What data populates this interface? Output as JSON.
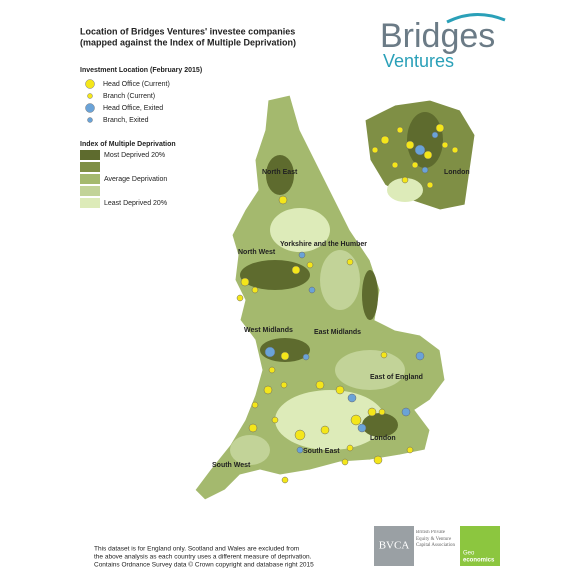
{
  "header": {
    "title_lines": [
      "Location of Bridges Ventures' investee companies",
      "(mapped against the Index of Multiple Deprivation)"
    ]
  },
  "logo": {
    "name": "Bridges",
    "sub": "Ventures"
  },
  "legend_locations": {
    "title": "Investment Location (February 2015)",
    "items": [
      "Head Office (Current)",
      "Branch (Current)",
      "Head Office, Exited",
      "Branch, Exited"
    ]
  },
  "legend_deprivation": {
    "title": "Index of Multiple Deprivation",
    "items": [
      "Most Deprived 20%",
      "Average Deprivation",
      "Least Deprived 20%"
    ]
  },
  "regions": [
    "North East",
    "North West",
    "Yorkshire and the Humber",
    "West Midlands",
    "East Midlands",
    "East of England",
    "London",
    "South East",
    "South West"
  ],
  "inset": {
    "label": "London"
  },
  "footer": {
    "lines": [
      "This dataset is for England only. Scotland and Wales are excluded from",
      "the above analysis as each country uses a different measure of deprivation.",
      "Contains Ordnance Survey data © Crown copyright and database right 2015"
    ]
  },
  "partners": {
    "bvca": "BVCA",
    "bvca_name": "British Private Equity & Venture Capital Association",
    "geo": "Geo",
    "geo_sub": "economics"
  }
}
